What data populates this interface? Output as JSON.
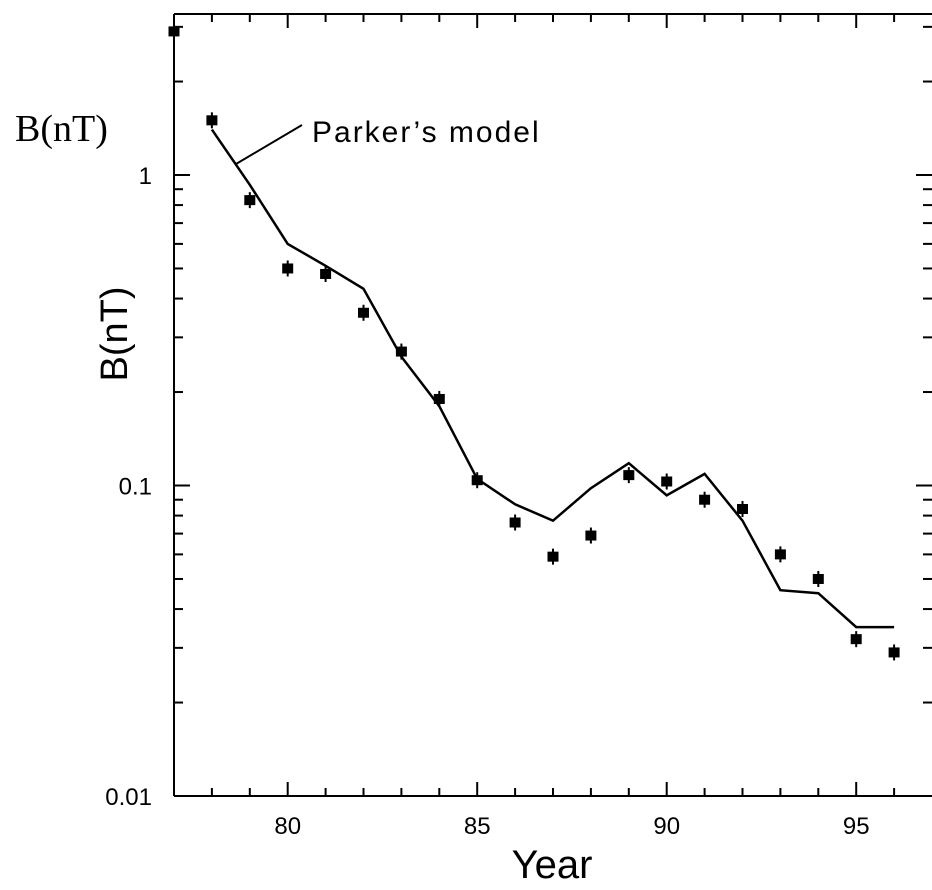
{
  "chart_data": {
    "type": "scatter",
    "title": "",
    "xlabel": "Year",
    "ylabel": "B(nT)",
    "ylabel_rotated": "B(nT)",
    "xlim": [
      77,
      97
    ],
    "ylim": [
      0.01,
      5
    ],
    "yscale": "log",
    "x_ticks": [
      80,
      85,
      90,
      95
    ],
    "x_tick_labels": [
      "80",
      "85",
      "90",
      "95"
    ],
    "y_ticks": [
      0.01,
      0.1,
      1
    ],
    "y_tick_labels": [
      "0.01",
      "0.1",
      "1"
    ],
    "grid": false,
    "annotation": "Parker’s model",
    "series": [
      {
        "name": "",
        "kind": "points",
        "x": [
          77,
          78,
          79,
          80,
          81,
          82,
          83,
          84,
          85,
          86,
          87,
          88,
          89,
          90,
          91,
          92,
          93,
          94,
          95,
          96
        ],
        "y": [
          2.9,
          1.5,
          0.83,
          0.5,
          0.48,
          0.36,
          0.27,
          0.19,
          0.104,
          0.076,
          0.059,
          0.069,
          0.108,
          0.103,
          0.09,
          0.084,
          0.06,
          0.05,
          0.032,
          0.029
        ]
      },
      {
        "name": "Parker’s model",
        "kind": "line",
        "x": [
          78,
          79,
          80,
          81,
          82,
          83,
          84,
          85,
          86,
          87,
          88,
          89,
          90,
          91,
          92,
          93,
          94,
          95,
          96
        ],
        "y": [
          1.4,
          0.93,
          0.6,
          0.51,
          0.43,
          0.26,
          0.18,
          0.105,
          0.087,
          0.077,
          0.098,
          0.118,
          0.093,
          0.109,
          0.077,
          0.046,
          0.045,
          0.035,
          0.035
        ]
      }
    ]
  }
}
